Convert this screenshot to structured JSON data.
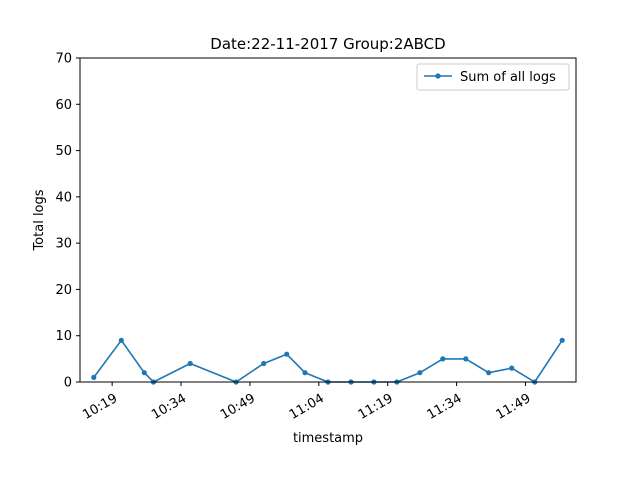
{
  "chart_data": {
    "type": "line",
    "title": "Date:22-11-2017  Group:2ABCD",
    "xlabel": "timestamp",
    "ylabel": "Total logs",
    "x_ticks": [
      "10:19",
      "10:34",
      "10:49",
      "11:04",
      "11:19",
      "11:34",
      "11:49"
    ],
    "ylim": [
      0,
      70
    ],
    "y_ticks": [
      0,
      10,
      20,
      30,
      40,
      50,
      60,
      70
    ],
    "grid": false,
    "legend": "top-right",
    "series": [
      {
        "name": "Sum of all logs",
        "color": "#1f77b4",
        "points": [
          {
            "x": "10:15",
            "y": 1
          },
          {
            "x": "10:21",
            "y": 9
          },
          {
            "x": "10:26",
            "y": 2
          },
          {
            "x": "10:28",
            "y": 0
          },
          {
            "x": "10:36",
            "y": 4
          },
          {
            "x": "10:46",
            "y": 0
          },
          {
            "x": "10:52",
            "y": 4
          },
          {
            "x": "10:57",
            "y": 6
          },
          {
            "x": "11:01",
            "y": 2
          },
          {
            "x": "11:06",
            "y": 0
          },
          {
            "x": "11:11",
            "y": 0
          },
          {
            "x": "11:16",
            "y": 0
          },
          {
            "x": "11:21",
            "y": 0
          },
          {
            "x": "11:26",
            "y": 2
          },
          {
            "x": "11:31",
            "y": 5
          },
          {
            "x": "11:36",
            "y": 5
          },
          {
            "x": "11:41",
            "y": 2
          },
          {
            "x": "11:46",
            "y": 3
          },
          {
            "x": "11:51",
            "y": 0
          },
          {
            "x": "11:57",
            "y": 9
          }
        ]
      }
    ]
  }
}
